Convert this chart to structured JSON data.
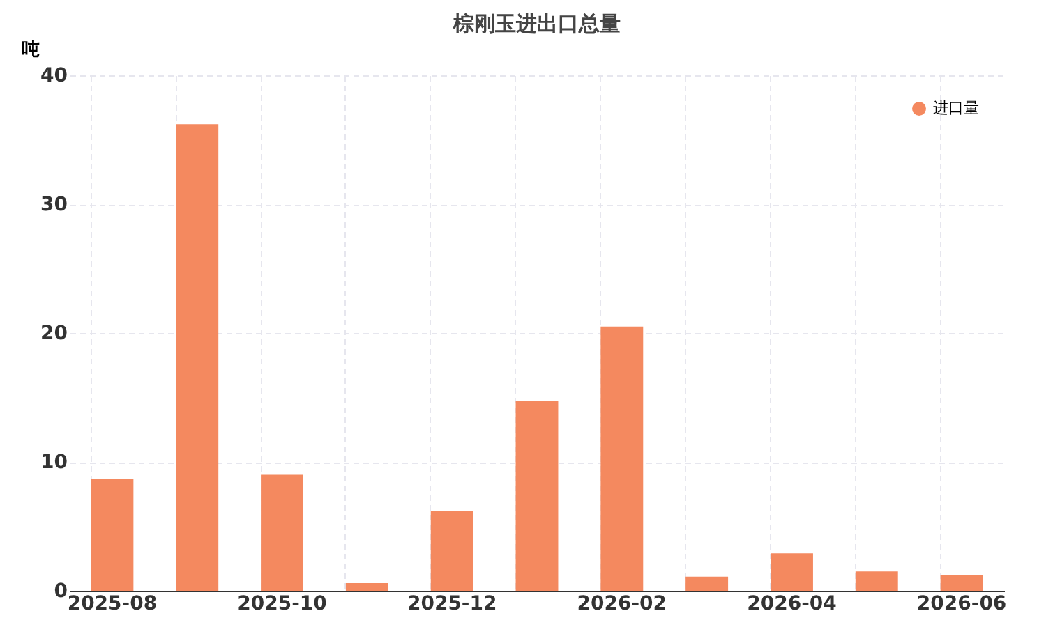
{
  "chart_data": {
    "type": "bar",
    "title": "棕刚玉进出口总量",
    "ylabel": "吨",
    "categories": [
      "2025-08",
      null,
      "2025-10",
      null,
      "2025-12",
      null,
      "2026-02",
      null,
      "2026-04",
      null,
      "2026-06"
    ],
    "series": [
      {
        "name": "进口量",
        "color": "#f4895f",
        "values": [
          8.7,
          36.2,
          9.0,
          0.6,
          6.2,
          14.7,
          20.5,
          1.1,
          2.9,
          1.5,
          1.2
        ]
      }
    ],
    "ylim": [
      0,
      40
    ],
    "yticks": [
      0,
      10,
      20,
      30,
      40
    ],
    "grid": true,
    "legend": "top right"
  }
}
